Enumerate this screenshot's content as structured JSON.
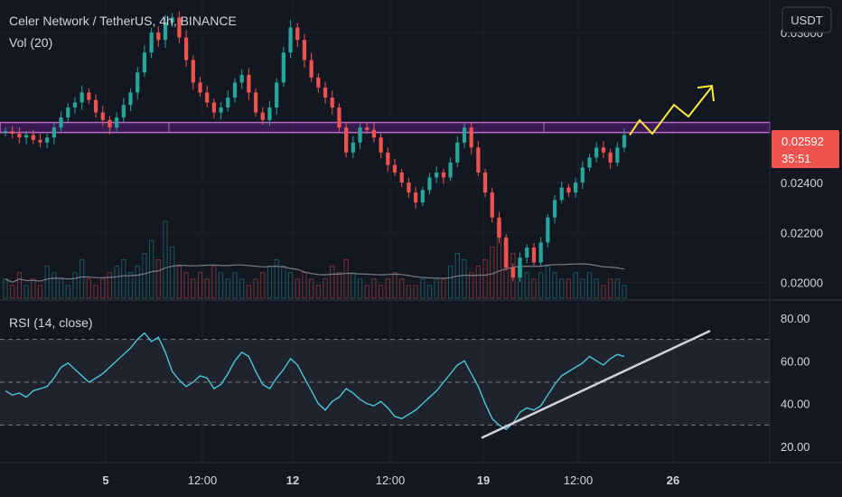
{
  "chart_data": [
    {
      "type": "candlestick",
      "title": "Celer Network / TetherUS, 4h, BINANCE",
      "indicator_label": "Vol (20)",
      "currency_badge": "USDT",
      "y_ticks": [
        "0.03000",
        "0.02400",
        "0.02200",
        "0.02000"
      ],
      "y_tick_values": [
        0.03,
        0.024,
        0.022,
        0.02
      ],
      "ylim": [
        0.0193,
        0.0313
      ],
      "x_ticks": [
        "5",
        "12:00",
        "12",
        "12:00",
        "19",
        "12:00",
        "26"
      ],
      "last_price": "0.02592",
      "countdown": "35:51",
      "resistance_zone": [
        0.026,
        0.0264
      ],
      "close_series": [
        0.02605,
        0.02595,
        0.0258,
        0.0259,
        0.0257,
        0.0256,
        0.0258,
        0.0262,
        0.0266,
        0.027,
        0.0272,
        0.0276,
        0.0273,
        0.0268,
        0.0265,
        0.0262,
        0.0266,
        0.0271,
        0.0276,
        0.0284,
        0.0292,
        0.03,
        0.0297,
        0.0304,
        0.0306,
        0.0298,
        0.0289,
        0.028,
        0.0276,
        0.0272,
        0.0268,
        0.027,
        0.0274,
        0.028,
        0.0283,
        0.0276,
        0.0268,
        0.0265,
        0.027,
        0.028,
        0.0292,
        0.0302,
        0.0297,
        0.0289,
        0.0282,
        0.0278,
        0.0274,
        0.027,
        0.0262,
        0.0252,
        0.0256,
        0.0262,
        0.0261,
        0.0258,
        0.0252,
        0.0247,
        0.0244,
        0.024,
        0.0236,
        0.0232,
        0.0237,
        0.0242,
        0.0244,
        0.0242,
        0.0248,
        0.0256,
        0.0262,
        0.0254,
        0.0244,
        0.0236,
        0.0226,
        0.0218,
        0.0206,
        0.0202,
        0.021,
        0.0214,
        0.0208,
        0.0216,
        0.0226,
        0.0233,
        0.0238,
        0.0236,
        0.024,
        0.0246,
        0.025,
        0.0254,
        0.0252,
        0.0248,
        0.0254,
        0.0259
      ],
      "volume_series": [
        3,
        2,
        4,
        2,
        3,
        2,
        5,
        4,
        3,
        2,
        4,
        6,
        3,
        2,
        3,
        4,
        5,
        6,
        4,
        5,
        7,
        9,
        6,
        12,
        8,
        5,
        4,
        3,
        4,
        3,
        5,
        4,
        3,
        4,
        3,
        2,
        3,
        4,
        5,
        6,
        5,
        4,
        3,
        4,
        3,
        2,
        3,
        5,
        4,
        6,
        4,
        3,
        2,
        3,
        2,
        3,
        4,
        3,
        2,
        2,
        3,
        2,
        3,
        3,
        5,
        7,
        6,
        4,
        5,
        6,
        8,
        12,
        9,
        7,
        5,
        4,
        3,
        4,
        5,
        4,
        3,
        3,
        4,
        3,
        4,
        3,
        2,
        3,
        3,
        2
      ],
      "projection_label": "yellow projected path",
      "colors": {
        "up": "#26a69a",
        "down": "#ef5350",
        "zone": "#9c27b0",
        "projection": "#ffeb3b",
        "rsi": "#4dd0e1",
        "trend": "#d1d4dc"
      }
    },
    {
      "type": "line",
      "title": "RSI (14, close)",
      "y_ticks": [
        "80.00",
        "60.00",
        "40.00",
        "20.00"
      ],
      "y_tick_values": [
        80,
        60,
        40,
        20
      ],
      "ylim": [
        15,
        85
      ],
      "bands": [
        70,
        50,
        30
      ],
      "values": [
        46,
        44,
        45,
        43,
        46,
        47,
        48,
        52,
        57,
        59,
        56,
        53,
        50,
        52,
        54,
        57,
        60,
        63,
        66,
        70,
        73,
        69,
        71,
        64,
        55,
        51,
        48,
        50,
        53,
        52,
        47,
        49,
        54,
        60,
        64,
        62,
        55,
        49,
        47,
        52,
        56,
        61,
        58,
        52,
        46,
        40,
        37,
        41,
        43,
        47,
        45,
        42,
        40,
        39,
        41,
        38,
        34,
        33,
        35,
        37,
        40,
        43,
        46,
        50,
        54,
        58,
        60,
        54,
        48,
        40,
        33,
        30,
        28,
        31,
        36,
        38,
        37,
        39,
        44,
        49,
        53,
        55,
        57,
        59,
        62,
        60,
        58,
        61,
        63,
        62
      ],
      "trendline_label": "RSI trendline"
    }
  ]
}
